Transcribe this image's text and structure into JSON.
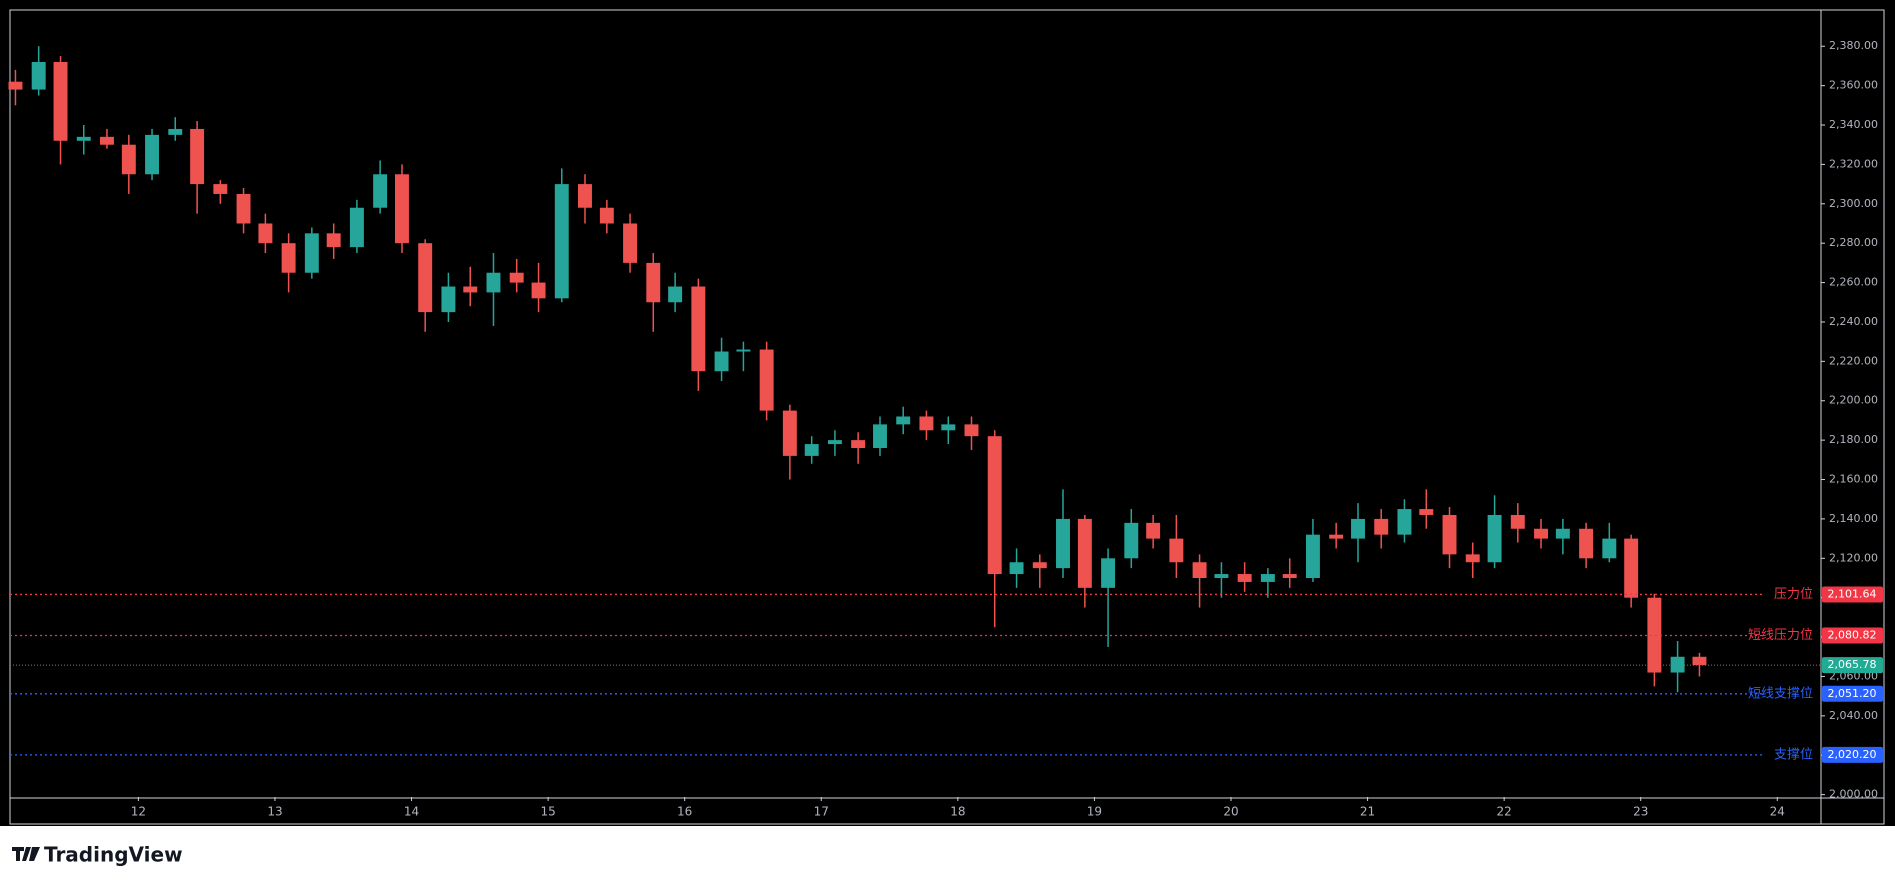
{
  "chart_data": {
    "type": "candlestick",
    "x": [
      11.1,
      11.27,
      11.43,
      11.6,
      11.77,
      11.93,
      12.1,
      12.27,
      12.43,
      12.6,
      12.77,
      12.93,
      13.1,
      13.27,
      13.43,
      13.6,
      13.77,
      13.93,
      14.1,
      14.27,
      14.43,
      14.6,
      14.77,
      14.93,
      15.1,
      15.27,
      15.43,
      15.6,
      15.77,
      15.93,
      16.1,
      16.27,
      16.43,
      16.6,
      16.77,
      16.93,
      17.1,
      17.27,
      17.43,
      17.6,
      17.77,
      17.93,
      18.1,
      18.27,
      18.43,
      18.6,
      18.77,
      18.93,
      19.1,
      19.27,
      19.43,
      19.6,
      19.77,
      19.93,
      20.1,
      20.27,
      20.43,
      20.6,
      20.77,
      20.93,
      21.1,
      21.27,
      21.43,
      21.6,
      21.77,
      21.93,
      22.1,
      22.27,
      22.43,
      22.6,
      22.77,
      22.93,
      23.1,
      23.27,
      23.43
    ],
    "open": [
      2362,
      2358,
      2372,
      2332,
      2334,
      2330,
      2315,
      2335,
      2338,
      2310,
      2305,
      2290,
      2280,
      2265,
      2285,
      2278,
      2298,
      2315,
      2280,
      2245,
      2258,
      2255,
      2265,
      2260,
      2252,
      2310,
      2298,
      2290,
      2270,
      2250,
      2258,
      2215,
      2225,
      2226,
      2195,
      2172,
      2178,
      2180,
      2176,
      2188,
      2192,
      2185,
      2188,
      2182,
      2112,
      2118,
      2115,
      2140,
      2105,
      2120,
      2138,
      2130,
      2118,
      2110,
      2112,
      2108,
      2112,
      2110,
      2132,
      2130,
      2140,
      2132,
      2145,
      2142,
      2122,
      2118,
      2142,
      2135,
      2130,
      2135,
      2120,
      2130,
      2100,
      2062,
      2070
    ],
    "high": [
      2368,
      2380,
      2375,
      2340,
      2338,
      2335,
      2338,
      2344,
      2342,
      2312,
      2308,
      2295,
      2285,
      2288,
      2290,
      2302,
      2322,
      2320,
      2282,
      2265,
      2268,
      2275,
      2272,
      2270,
      2318,
      2315,
      2302,
      2295,
      2275,
      2265,
      2262,
      2232,
      2230,
      2230,
      2198,
      2182,
      2185,
      2184,
      2192,
      2197,
      2195,
      2192,
      2192,
      2185,
      2125,
      2122,
      2155,
      2142,
      2125,
      2145,
      2142,
      2142,
      2122,
      2118,
      2118,
      2115,
      2120,
      2140,
      2138,
      2148,
      2145,
      2150,
      2155,
      2146,
      2128,
      2152,
      2148,
      2140,
      2140,
      2138,
      2138,
      2132,
      2102,
      2078,
      2072
    ],
    "low": [
      2350,
      2355,
      2320,
      2325,
      2328,
      2305,
      2312,
      2332,
      2295,
      2300,
      2285,
      2275,
      2255,
      2262,
      2272,
      2275,
      2295,
      2275,
      2235,
      2240,
      2248,
      2238,
      2255,
      2245,
      2250,
      2290,
      2285,
      2265,
      2235,
      2245,
      2205,
      2210,
      2215,
      2190,
      2160,
      2168,
      2172,
      2168,
      2172,
      2183,
      2180,
      2178,
      2175,
      2085,
      2105,
      2105,
      2110,
      2095,
      2075,
      2115,
      2125,
      2110,
      2095,
      2100,
      2103,
      2100,
      2105,
      2108,
      2125,
      2118,
      2125,
      2128,
      2135,
      2115,
      2110,
      2115,
      2128,
      2125,
      2122,
      2115,
      2118,
      2095,
      2055,
      2052,
      2060
    ],
    "close": [
      2358,
      2372,
      2332,
      2334,
      2330,
      2315,
      2335,
      2338,
      2310,
      2305,
      2290,
      2280,
      2265,
      2285,
      2278,
      2298,
      2315,
      2280,
      2245,
      2258,
      2255,
      2265,
      2260,
      2252,
      2310,
      2298,
      2290,
      2270,
      2250,
      2258,
      2215,
      2225,
      2226,
      2195,
      2172,
      2178,
      2180,
      2176,
      2188,
      2192,
      2185,
      2188,
      2182,
      2112,
      2118,
      2115,
      2140,
      2105,
      2120,
      2138,
      2130,
      2118,
      2110,
      2112,
      2108,
      2112,
      2110,
      2132,
      2130,
      2140,
      2132,
      2145,
      2142,
      2122,
      2118,
      2142,
      2135,
      2130,
      2135,
      2120,
      2130,
      2100,
      2062,
      2070,
      2065.78
    ],
    "up_color": "#26a69a",
    "down_color": "#ef5350",
    "xlim": [
      11.06,
      24.32
    ],
    "xticks": [
      12,
      13,
      14,
      15,
      16,
      17,
      18,
      19,
      20,
      21,
      22,
      23,
      24
    ],
    "ylim": [
      1998.8,
      2398.4
    ],
    "yticks": [
      {
        "value": 2000,
        "label": "2,000.00"
      },
      {
        "value": 2020,
        "label": "2,020.00"
      },
      {
        "value": 2040,
        "label": "2,040.00"
      },
      {
        "value": 2060,
        "label": "2,060.00"
      },
      {
        "value": 2080,
        "label": "2,080.00"
      },
      {
        "value": 2100,
        "label": "2,100.00"
      },
      {
        "value": 2120,
        "label": "2,120.00"
      },
      {
        "value": 2140,
        "label": "2,140.00"
      },
      {
        "value": 2160,
        "label": "2,160.00"
      },
      {
        "value": 2180,
        "label": "2,180.00"
      },
      {
        "value": 2200,
        "label": "2,200.00"
      },
      {
        "value": 2220,
        "label": "2,220.00"
      },
      {
        "value": 2240,
        "label": "2,240.00"
      },
      {
        "value": 2260,
        "label": "2,260.00"
      },
      {
        "value": 2280,
        "label": "2,280.00"
      },
      {
        "value": 2300,
        "label": "2,300.00"
      },
      {
        "value": 2320,
        "label": "2,320.00"
      },
      {
        "value": 2340,
        "label": "2,340.00"
      },
      {
        "value": 2360,
        "label": "2,360.00"
      },
      {
        "value": 2380,
        "label": "2,380.00"
      }
    ],
    "levels": [
      {
        "name": "压力位",
        "value": 2101.64,
        "label": "2,101.64",
        "color": "#f23645"
      },
      {
        "name": "短线压力位",
        "value": 2080.82,
        "label": "2,080.82",
        "color": "#f23645"
      },
      {
        "name": "短线支撑位",
        "value": 2051.2,
        "label": "2,051.20",
        "color": "#2962ff"
      },
      {
        "name": "支撑位",
        "value": 2020.2,
        "label": "2,020.20",
        "color": "#2962ff"
      }
    ],
    "last_price": {
      "value": 2065.78,
      "label": "2,065.78",
      "color": "#22ab94"
    }
  },
  "branding": "TradingView"
}
